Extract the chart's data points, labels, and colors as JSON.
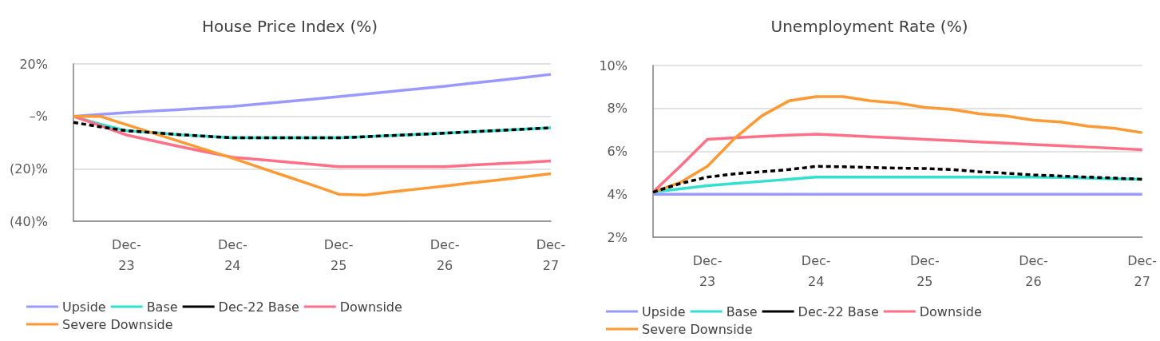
{
  "chart_data": [
    {
      "type": "line",
      "title": "House Price Index (%)",
      "categories": [
        null,
        null,
        "Dec-23",
        null,
        null,
        null,
        "Dec-24",
        null,
        null,
        null,
        "Dec-25",
        null,
        null,
        null,
        "Dec-26",
        null,
        null,
        null,
        "Dec-27"
      ],
      "ylim": [
        -40,
        20
      ],
      "yticks": [
        {
          "value": -40,
          "label": "(40)%"
        },
        {
          "value": -20,
          "label": "(20)%"
        },
        {
          "value": 0,
          "label": "–%"
        },
        {
          "value": 20,
          "label": "20%"
        }
      ],
      "grid": "y",
      "legend": "bottom",
      "marker": "none",
      "series": [
        {
          "name": "Upside",
          "color": "#9999ff",
          "values": [
            0,
            0.7,
            1.4,
            2,
            2.6,
            3.2,
            3.8,
            4.7,
            5.6,
            6.5,
            7.5,
            8.5,
            9.5,
            10.5,
            11.5,
            12.6,
            13.7,
            14.8,
            16
          ]
        },
        {
          "name": "Base",
          "color": "#33e0d0",
          "values": [
            0,
            -3,
            -5.5,
            -6.2,
            -7,
            -7.6,
            -8.2,
            -8.2,
            -8.2,
            -8.2,
            -8.2,
            -7.8,
            -7.3,
            -6.9,
            -6.4,
            -5.9,
            -5.4,
            -4.9,
            -4.4
          ]
        },
        {
          "name": "Dec-22 Base",
          "color": "#000000",
          "line_style": "dashed",
          "values": [
            -2.3,
            -4,
            -5.5,
            -6.2,
            -7,
            -7.6,
            -8.2,
            -8.2,
            -8.2,
            -8.2,
            -8.2,
            -7.8,
            -7.3,
            -6.9,
            -6.4,
            -5.9,
            -5.4,
            -4.9,
            -4.4
          ]
        },
        {
          "name": "Downside",
          "color": "#ff7088",
          "values": [
            0,
            -3.5,
            -7.1,
            -9.3,
            -11.5,
            -13.6,
            -15.6,
            -16.5,
            -17.4,
            -18.3,
            -19.2,
            -19.2,
            -19.2,
            -19.2,
            -19.2,
            -18.6,
            -18.1,
            -17.6,
            -17
          ]
        },
        {
          "name": "Severe Downside",
          "color": "#ff9933",
          "values": [
            0,
            0,
            -3.2,
            -6.4,
            -9.6,
            -12.8,
            -16,
            -19.4,
            -22.8,
            -26.2,
            -29.7,
            -30,
            -28.8,
            -27.7,
            -26.6,
            -25.4,
            -24.3,
            -23.1,
            -21.9
          ]
        }
      ]
    },
    {
      "type": "line",
      "title": "Unemployment Rate (%)",
      "categories": [
        null,
        null,
        "Dec-23",
        null,
        null,
        null,
        "Dec-24",
        null,
        null,
        null,
        "Dec-25",
        null,
        null,
        null,
        "Dec-26",
        null,
        null,
        null,
        "Dec-27"
      ],
      "ylim": [
        2,
        10
      ],
      "yticks": [
        {
          "value": 2,
          "label": "2%"
        },
        {
          "value": 4,
          "label": "4%"
        },
        {
          "value": 6,
          "label": "6%"
        },
        {
          "value": 8,
          "label": "8%"
        },
        {
          "value": 10,
          "label": "10%"
        }
      ],
      "grid": "y",
      "legend": "bottom",
      "marker": "none",
      "series": [
        {
          "name": "Upside",
          "color": "#9999ff",
          "values": [
            4,
            4,
            4,
            4,
            4,
            4,
            4,
            4,
            4,
            4,
            4,
            4,
            4,
            4,
            4,
            4,
            4,
            4,
            4
          ]
        },
        {
          "name": "Base",
          "color": "#33e0d0",
          "values": [
            4.1,
            4.25,
            4.4,
            4.5,
            4.6,
            4.7,
            4.8,
            4.8,
            4.8,
            4.8,
            4.8,
            4.8,
            4.8,
            4.8,
            4.8,
            4.78,
            4.75,
            4.72,
            4.7
          ]
        },
        {
          "name": "Dec-22 Base",
          "color": "#000000",
          "line_style": "dashed",
          "values": [
            4.1,
            4.5,
            4.8,
            4.95,
            5.05,
            5.15,
            5.3,
            5.28,
            5.25,
            5.22,
            5.2,
            5.15,
            5.05,
            4.98,
            4.9,
            4.85,
            4.8,
            4.75,
            4.7
          ]
        },
        {
          "name": "Downside",
          "color": "#ff7088",
          "values": [
            4.1,
            5.3,
            6.56,
            6.63,
            6.7,
            6.75,
            6.8,
            6.74,
            6.68,
            6.62,
            6.56,
            6.5,
            6.44,
            6.38,
            6.32,
            6.26,
            6.2,
            6.14,
            6.07
          ]
        },
        {
          "name": "Severe Downside",
          "color": "#ff9933",
          "values": [
            4.1,
            4.55,
            5.3,
            6.6,
            7.65,
            8.35,
            8.55,
            8.55,
            8.35,
            8.25,
            8.05,
            7.95,
            7.75,
            7.65,
            7.45,
            7.37,
            7.17,
            7.07,
            6.87
          ]
        }
      ]
    }
  ]
}
